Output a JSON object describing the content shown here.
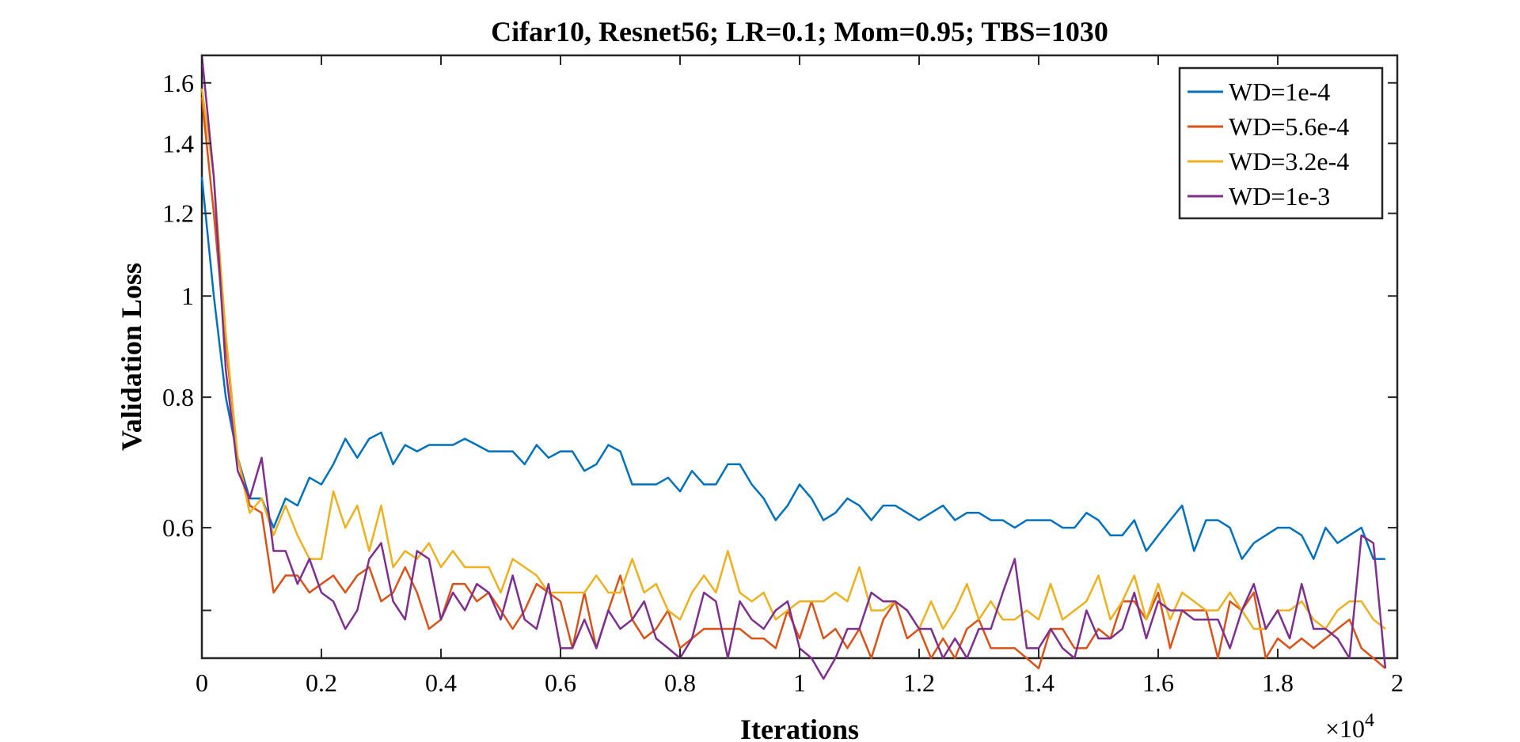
{
  "chart_data": {
    "type": "line",
    "title": "Cifar10, Resnet56; LR=0.1; Mom=0.95; TBS=1030",
    "xlabel": "Iterations",
    "ylabel": "Validation Loss",
    "x_exponent_base": "×10",
    "x_exponent_power": "4",
    "xlim": [
      0,
      20000
    ],
    "ylim": [
      0.45,
      1.7
    ],
    "y_scale": "log",
    "x_ticks": [
      0,
      2000,
      4000,
      6000,
      8000,
      10000,
      12000,
      14000,
      16000,
      18000,
      20000
    ],
    "x_tick_labels": [
      "0",
      "0.2",
      "0.4",
      "0.6",
      "0.8",
      "1",
      "1.2",
      "1.4",
      "1.6",
      "1.8",
      "2"
    ],
    "y_ticks": [
      0.6,
      0.8,
      1.0,
      1.2,
      1.4,
      1.6
    ],
    "y_tick_labels": [
      "0.6",
      "0.8",
      "1",
      "1.2",
      "1.4",
      "1.6"
    ],
    "legend_position": "top-right",
    "grid": false,
    "series": [
      {
        "name": "WD=1e-4",
        "color": "#0072BD",
        "x": [
          0,
          200,
          400,
          600,
          800,
          1000,
          1200,
          1400,
          1600,
          1800,
          2000,
          2200,
          2400,
          2600,
          2800,
          3000,
          3200,
          3400,
          3600,
          3800,
          4000,
          4200,
          4400,
          4600,
          4800,
          5000,
          5200,
          5400,
          5600,
          5800,
          6000,
          6200,
          6400,
          6600,
          6800,
          7000,
          7200,
          7400,
          7600,
          7800,
          8000,
          8200,
          8400,
          8600,
          8800,
          9000,
          9200,
          9400,
          9600,
          9800,
          10000,
          10200,
          10400,
          10600,
          10800,
          11000,
          11200,
          11400,
          11600,
          11800,
          12000,
          12200,
          12400,
          12600,
          12800,
          13000,
          13200,
          13400,
          13600,
          13800,
          14000,
          14200,
          14400,
          14600,
          14800,
          15000,
          15200,
          15400,
          15600,
          15800,
          16000,
          16200,
          16400,
          16600,
          16800,
          17000,
          17200,
          17400,
          17600,
          17800,
          18000,
          18200,
          18400,
          18600,
          18800,
          19000,
          19200,
          19400,
          19600,
          19800
        ],
        "y": [
          1.3,
          1.0,
          0.8,
          0.7,
          0.64,
          0.64,
          0.6,
          0.64,
          0.63,
          0.67,
          0.66,
          0.69,
          0.73,
          0.7,
          0.73,
          0.74,
          0.69,
          0.72,
          0.71,
          0.72,
          0.72,
          0.72,
          0.73,
          0.72,
          0.71,
          0.71,
          0.71,
          0.69,
          0.72,
          0.7,
          0.71,
          0.71,
          0.68,
          0.69,
          0.72,
          0.71,
          0.66,
          0.66,
          0.66,
          0.67,
          0.65,
          0.68,
          0.66,
          0.66,
          0.69,
          0.69,
          0.66,
          0.64,
          0.61,
          0.63,
          0.66,
          0.64,
          0.61,
          0.62,
          0.64,
          0.63,
          0.61,
          0.63,
          0.63,
          0.62,
          0.61,
          0.62,
          0.63,
          0.61,
          0.62,
          0.62,
          0.61,
          0.61,
          0.6,
          0.61,
          0.61,
          0.61,
          0.6,
          0.6,
          0.62,
          0.61,
          0.59,
          0.59,
          0.61,
          0.57,
          0.59,
          0.61,
          0.63,
          0.57,
          0.61,
          0.61,
          0.6,
          0.56,
          0.58,
          0.59,
          0.6,
          0.6,
          0.59,
          0.56,
          0.6,
          0.58,
          0.59,
          0.6,
          0.56,
          0.56
        ]
      },
      {
        "name": "WD=5.6e-4",
        "color": "#D95319",
        "x": [
          0,
          200,
          400,
          600,
          800,
          1000,
          1200,
          1400,
          1600,
          1800,
          2000,
          2200,
          2400,
          2600,
          2800,
          3000,
          3200,
          3400,
          3600,
          3800,
          4000,
          4200,
          4400,
          4600,
          4800,
          5000,
          5200,
          5400,
          5600,
          5800,
          6000,
          6200,
          6400,
          6600,
          6800,
          7000,
          7200,
          7400,
          7600,
          7800,
          8000,
          8200,
          8400,
          8600,
          8800,
          9000,
          9200,
          9400,
          9600,
          9800,
          10000,
          10200,
          10400,
          10600,
          10800,
          11000,
          11200,
          11400,
          11600,
          11800,
          12000,
          12200,
          12400,
          12600,
          12800,
          13000,
          13200,
          13400,
          13600,
          13800,
          14000,
          14200,
          14400,
          14600,
          14800,
          15000,
          15200,
          15400,
          15600,
          15800,
          16000,
          16200,
          16400,
          16600,
          16800,
          17000,
          17200,
          17400,
          17600,
          17800,
          18000,
          18200,
          18400,
          18600,
          18800,
          19000,
          19200,
          19400,
          19600,
          19800
        ],
        "y": [
          1.55,
          1.2,
          0.9,
          0.7,
          0.63,
          0.62,
          0.52,
          0.54,
          0.54,
          0.52,
          0.53,
          0.54,
          0.52,
          0.54,
          0.55,
          0.51,
          0.52,
          0.55,
          0.52,
          0.48,
          0.49,
          0.53,
          0.53,
          0.51,
          0.52,
          0.5,
          0.48,
          0.5,
          0.53,
          0.52,
          0.51,
          0.46,
          0.52,
          0.46,
          0.5,
          0.54,
          0.49,
          0.47,
          0.48,
          0.5,
          0.46,
          0.47,
          0.48,
          0.48,
          0.48,
          0.48,
          0.47,
          0.47,
          0.46,
          0.5,
          0.47,
          0.51,
          0.47,
          0.48,
          0.46,
          0.48,
          0.45,
          0.49,
          0.51,
          0.47,
          0.48,
          0.45,
          0.47,
          0.45,
          0.48,
          0.49,
          0.46,
          0.46,
          0.46,
          0.45,
          0.44,
          0.48,
          0.48,
          0.46,
          0.46,
          0.48,
          0.47,
          0.51,
          0.51,
          0.49,
          0.52,
          0.46,
          0.5,
          0.5,
          0.5,
          0.45,
          0.51,
          0.5,
          0.52,
          0.45,
          0.47,
          0.46,
          0.47,
          0.46,
          0.47,
          0.48,
          0.49,
          0.46,
          0.45,
          0.44
        ]
      },
      {
        "name": "WD=3.2e-4",
        "color": "#EDB120",
        "x": [
          0,
          200,
          400,
          600,
          800,
          1000,
          1200,
          1400,
          1600,
          1800,
          2000,
          2200,
          2400,
          2600,
          2800,
          3000,
          3200,
          3400,
          3600,
          3800,
          4000,
          4200,
          4400,
          4600,
          4800,
          5000,
          5200,
          5400,
          5600,
          5800,
          6000,
          6200,
          6400,
          6600,
          6800,
          7000,
          7200,
          7400,
          7600,
          7800,
          8000,
          8200,
          8400,
          8600,
          8800,
          9000,
          9200,
          9400,
          9600,
          9800,
          10000,
          10200,
          10400,
          10600,
          10800,
          11000,
          11200,
          11400,
          11600,
          11800,
          12000,
          12200,
          12400,
          12600,
          12800,
          13000,
          13200,
          13400,
          13600,
          13800,
          14000,
          14200,
          14400,
          14600,
          14800,
          15000,
          15200,
          15400,
          15600,
          15800,
          16000,
          16200,
          16400,
          16600,
          16800,
          17000,
          17200,
          17400,
          17600,
          17800,
          18000,
          18200,
          18400,
          18600,
          18800,
          19000,
          19200,
          19400,
          19600,
          19800
        ],
        "y": [
          1.58,
          1.3,
          0.92,
          0.7,
          0.62,
          0.64,
          0.59,
          0.63,
          0.59,
          0.56,
          0.56,
          0.65,
          0.6,
          0.63,
          0.57,
          0.63,
          0.55,
          0.57,
          0.56,
          0.58,
          0.55,
          0.57,
          0.55,
          0.55,
          0.55,
          0.52,
          0.56,
          0.55,
          0.54,
          0.52,
          0.52,
          0.52,
          0.52,
          0.54,
          0.52,
          0.52,
          0.56,
          0.52,
          0.53,
          0.5,
          0.49,
          0.52,
          0.54,
          0.52,
          0.57,
          0.52,
          0.51,
          0.52,
          0.49,
          0.5,
          0.51,
          0.51,
          0.51,
          0.52,
          0.51,
          0.55,
          0.5,
          0.5,
          0.51,
          0.5,
          0.48,
          0.51,
          0.48,
          0.5,
          0.53,
          0.49,
          0.51,
          0.49,
          0.49,
          0.5,
          0.49,
          0.53,
          0.49,
          0.5,
          0.51,
          0.54,
          0.49,
          0.51,
          0.54,
          0.49,
          0.53,
          0.49,
          0.52,
          0.51,
          0.5,
          0.5,
          0.52,
          0.5,
          0.48,
          0.48,
          0.5,
          0.5,
          0.51,
          0.49,
          0.48,
          0.5,
          0.51,
          0.51,
          0.49,
          0.48
        ]
      },
      {
        "name": "WD=1e-3",
        "color": "#7E2F8E",
        "x": [
          0,
          200,
          400,
          600,
          800,
          1000,
          1200,
          1400,
          1600,
          1800,
          2000,
          2200,
          2400,
          2600,
          2800,
          3000,
          3200,
          3400,
          3600,
          3800,
          4000,
          4200,
          4400,
          4600,
          4800,
          5000,
          5200,
          5400,
          5600,
          5800,
          6000,
          6200,
          6400,
          6600,
          6800,
          7000,
          7200,
          7400,
          7600,
          7800,
          8000,
          8200,
          8400,
          8600,
          8800,
          9000,
          9200,
          9400,
          9600,
          9800,
          10000,
          10200,
          10400,
          10600,
          10800,
          11000,
          11200,
          11400,
          11600,
          11800,
          12000,
          12200,
          12400,
          12600,
          12800,
          13000,
          13200,
          13400,
          13600,
          13800,
          14000,
          14200,
          14400,
          14600,
          14800,
          15000,
          15200,
          15400,
          15600,
          15800,
          16000,
          16200,
          16400,
          16600,
          16800,
          17000,
          17200,
          17400,
          17600,
          17800,
          18000,
          18200,
          18400,
          18600,
          18800,
          19000,
          19200,
          19400,
          19600,
          19800
        ],
        "y": [
          1.7,
          1.3,
          0.85,
          0.68,
          0.64,
          0.7,
          0.57,
          0.57,
          0.53,
          0.56,
          0.52,
          0.51,
          0.48,
          0.5,
          0.56,
          0.58,
          0.51,
          0.49,
          0.57,
          0.56,
          0.49,
          0.52,
          0.5,
          0.53,
          0.52,
          0.49,
          0.54,
          0.49,
          0.48,
          0.53,
          0.46,
          0.46,
          0.49,
          0.46,
          0.5,
          0.48,
          0.49,
          0.51,
          0.47,
          0.46,
          0.45,
          0.47,
          0.52,
          0.51,
          0.45,
          0.51,
          0.49,
          0.48,
          0.5,
          0.51,
          0.46,
          0.45,
          0.43,
          0.45,
          0.48,
          0.48,
          0.52,
          0.51,
          0.51,
          0.5,
          0.48,
          0.48,
          0.45,
          0.47,
          0.45,
          0.48,
          0.48,
          0.52,
          0.56,
          0.46,
          0.46,
          0.48,
          0.46,
          0.45,
          0.5,
          0.47,
          0.47,
          0.48,
          0.52,
          0.47,
          0.51,
          0.5,
          0.5,
          0.49,
          0.49,
          0.49,
          0.46,
          0.5,
          0.53,
          0.48,
          0.5,
          0.47,
          0.53,
          0.48,
          0.48,
          0.47,
          0.45,
          0.59,
          0.58,
          0.44
        ]
      }
    ]
  }
}
